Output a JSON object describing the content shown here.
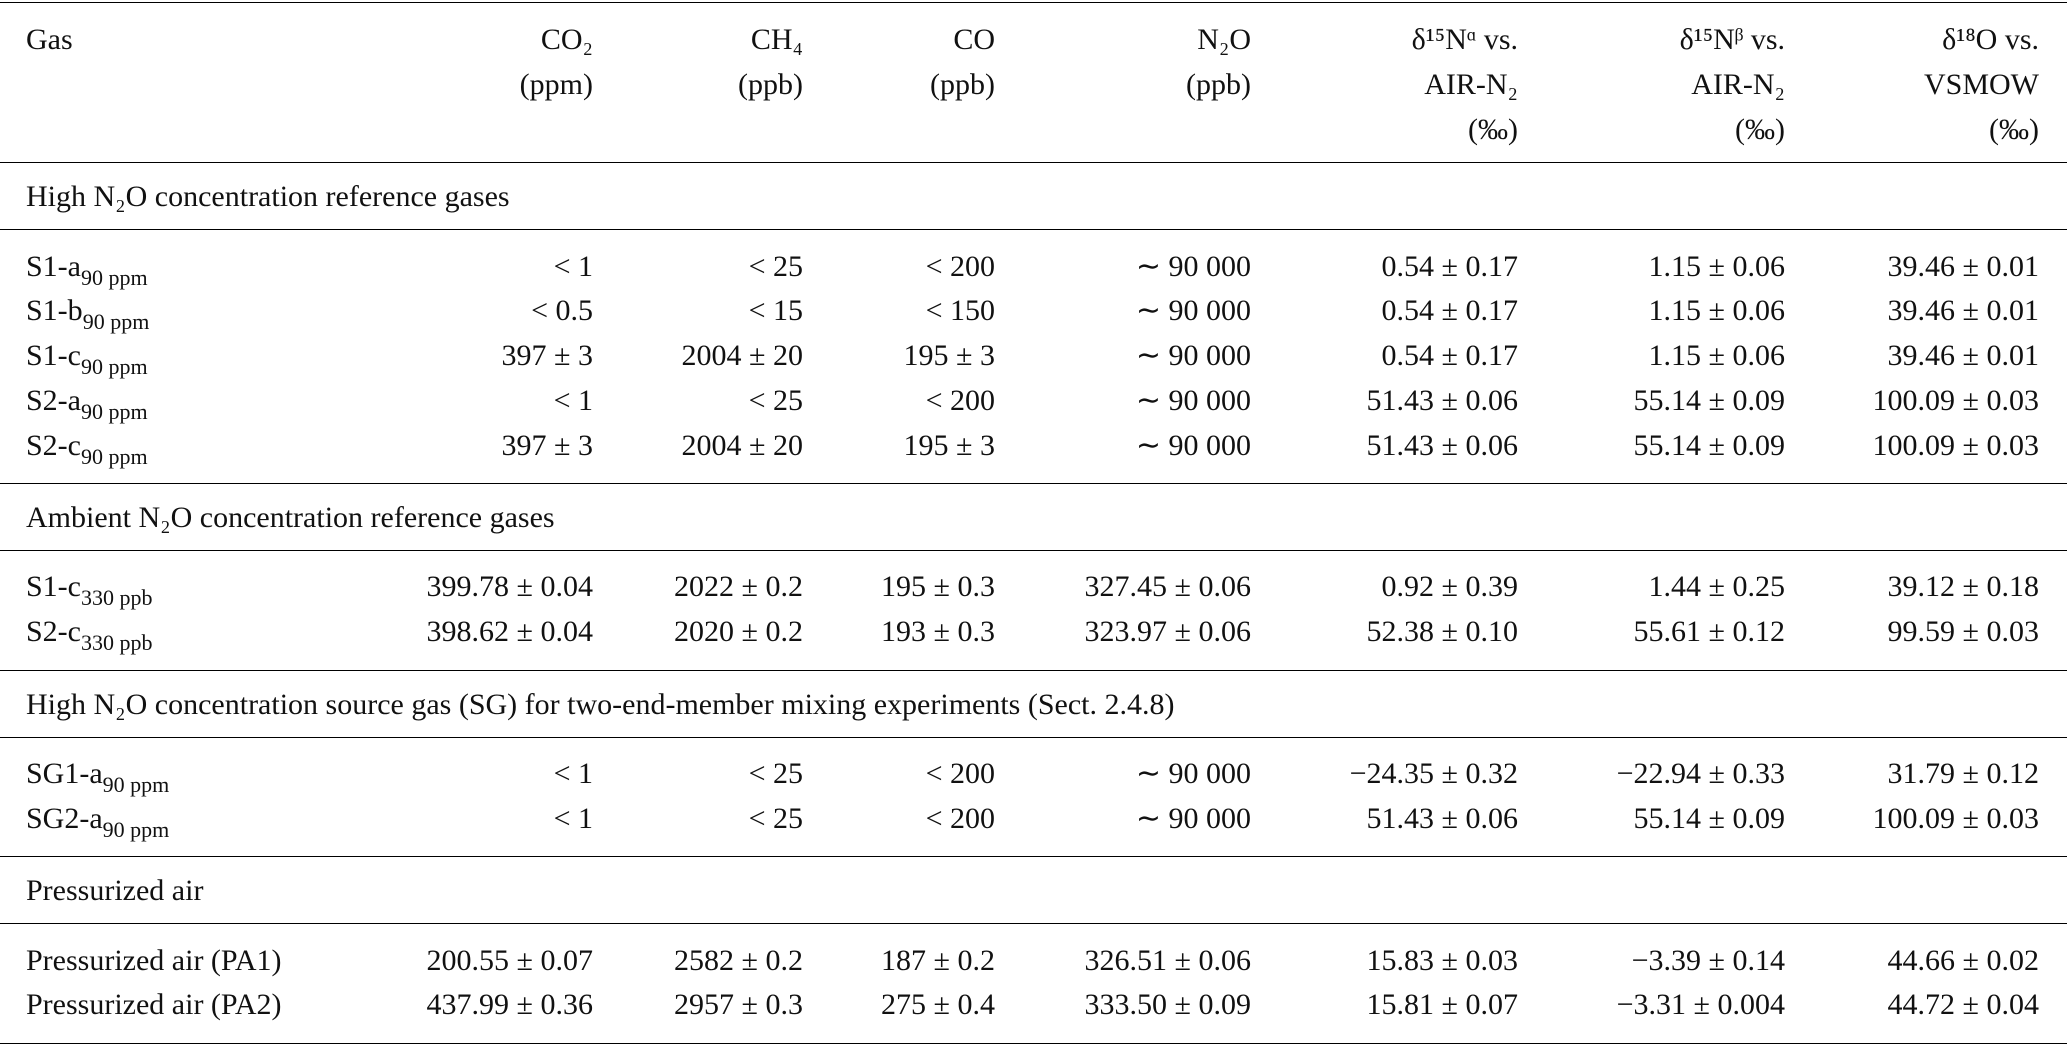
{
  "header": {
    "columns": [
      {
        "lines": [
          "Gas"
        ]
      },
      {
        "lines": [
          "CO₂",
          "(ppm)"
        ]
      },
      {
        "lines": [
          "CH₄",
          "(ppb)"
        ]
      },
      {
        "lines": [
          "CO",
          "(ppb)"
        ]
      },
      {
        "lines": [
          "N₂O",
          "(ppb)"
        ]
      },
      {
        "lines": [
          "δ¹⁵Nᵅ vs.",
          "AIR-N₂",
          "(‰)"
        ]
      },
      {
        "lines": [
          "δ¹⁵Nᵝ vs.",
          "AIR-N₂",
          "(‰)"
        ]
      },
      {
        "lines": [
          "δ¹⁸O vs.",
          "VSMOW",
          "(‰)"
        ]
      }
    ]
  },
  "sections": [
    {
      "title": "High N₂O concentration reference gases",
      "rows": [
        {
          "name": "S1-a",
          "sub": "90 ppm",
          "cells": [
            "< 1",
            "< 25",
            "< 200",
            "∼ 90 000",
            "0.54 ± 0.17",
            "1.15 ± 0.06",
            "39.46 ± 0.01"
          ]
        },
        {
          "name": "S1-b",
          "sub": "90 ppm",
          "cells": [
            "< 0.5",
            "< 15",
            "< 150",
            "∼ 90 000",
            "0.54 ± 0.17",
            "1.15 ± 0.06",
            "39.46 ± 0.01"
          ]
        },
        {
          "name": "S1-c",
          "sub": "90 ppm",
          "cells": [
            "397 ± 3",
            "2004 ± 20",
            "195 ± 3",
            "∼ 90 000",
            "0.54 ± 0.17",
            "1.15 ± 0.06",
            "39.46 ± 0.01"
          ]
        },
        {
          "name": "S2-a",
          "sub": "90 ppm",
          "cells": [
            "< 1",
            "< 25",
            "< 200",
            "∼ 90 000",
            "51.43 ± 0.06",
            "55.14 ± 0.09",
            "100.09 ± 0.03"
          ]
        },
        {
          "name": "S2-c",
          "sub": "90 ppm",
          "cells": [
            "397 ± 3",
            "2004 ± 20",
            "195 ± 3",
            "∼ 90 000",
            "51.43 ± 0.06",
            "55.14 ± 0.09",
            "100.09 ± 0.03"
          ]
        }
      ]
    },
    {
      "title": "Ambient N₂O concentration reference gases",
      "rows": [
        {
          "name": "S1-c",
          "sub": "330 ppb",
          "cells": [
            "399.78 ± 0.04",
            "2022 ± 0.2",
            "195 ± 0.3",
            "327.45 ± 0.06",
            "0.92 ± 0.39",
            "1.44 ± 0.25",
            "39.12 ± 0.18"
          ]
        },
        {
          "name": "S2-c",
          "sub": "330 ppb",
          "cells": [
            "398.62 ± 0.04",
            "2020 ± 0.2",
            "193 ± 0.3",
            "323.97 ± 0.06",
            "52.38 ± 0.10",
            "55.61 ± 0.12",
            "99.59 ± 0.03"
          ]
        }
      ]
    },
    {
      "title": "High N₂O concentration source gas (SG) for two-end-member mixing experiments (Sect. 2.4.8)",
      "rows": [
        {
          "name": "SG1-a",
          "sub": "90 ppm",
          "cells": [
            "< 1",
            "< 25",
            "< 200",
            "∼ 90 000",
            "−24.35 ± 0.32",
            "−22.94 ± 0.33",
            "31.79 ± 0.12"
          ]
        },
        {
          "name": "SG2-a",
          "sub": "90 ppm",
          "cells": [
            "< 1",
            "< 25",
            "< 200",
            "∼ 90 000",
            "51.43 ± 0.06",
            "55.14 ± 0.09",
            "100.09 ± 0.03"
          ]
        }
      ]
    },
    {
      "title": "Pressurized air",
      "rows": [
        {
          "name": "Pressurized air (PA1)",
          "cells": [
            "200.55 ± 0.07",
            "2582 ± 0.2",
            "187 ± 0.2",
            "326.51 ± 0.06",
            "15.83 ± 0.03",
            "−3.39 ± 0.14",
            "44.66 ± 0.02"
          ]
        },
        {
          "name": "Pressurized air (PA2)",
          "cells": [
            "437.99 ± 0.36",
            "2957 ± 0.3",
            "275 ± 0.4",
            "333.50 ± 0.09",
            "15.81 ± 0.07",
            "−3.31 ± 0.004",
            "44.72 ± 0.04"
          ]
        }
      ]
    }
  ]
}
